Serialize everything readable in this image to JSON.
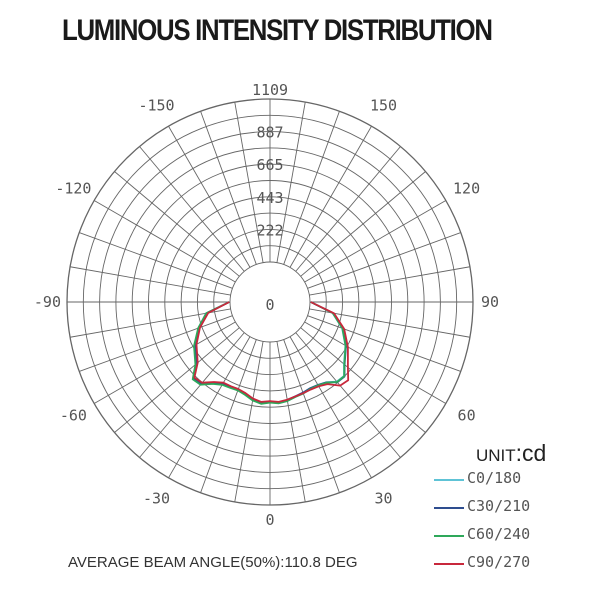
{
  "chart_data": {
    "type": "polar-line",
    "title": "LUMINOUS INTENSITY DISTRIBUTION",
    "radial_ticks": [
      "222",
      "443",
      "665",
      "887",
      "1109"
    ],
    "radial_max": 1109,
    "angle_ticks": [
      {
        "angle": 0,
        "label": "0"
      },
      {
        "angle": 30,
        "label": "30"
      },
      {
        "angle": 60,
        "label": "60"
      },
      {
        "angle": 90,
        "label": "90"
      },
      {
        "angle": 120,
        "label": "120"
      },
      {
        "angle": 150,
        "label": "150"
      },
      {
        "angle": -30,
        "label": "-30"
      },
      {
        "angle": -60,
        "label": "-60"
      },
      {
        "angle": -90,
        "label": "-90"
      },
      {
        "angle": -120,
        "label": "-120"
      },
      {
        "angle": -150,
        "label": "-150"
      },
      {
        "angle": 180,
        "label": "1109"
      }
    ],
    "unit_prefix": "UNIT",
    "unit": ":cd",
    "footer": "AVERAGE BEAM ANGLE(50%):110.8 DEG",
    "series": [
      {
        "name": "C0/180",
        "color": "#5ec3d6",
        "points": [
          [
            -90,
            5
          ],
          [
            -80,
            170
          ],
          [
            -70,
            245
          ],
          [
            -60,
            320
          ],
          [
            -50,
            385
          ],
          [
            -45,
            470
          ],
          [
            -40,
            460
          ],
          [
            -35,
            405
          ],
          [
            -30,
            375
          ],
          [
            -25,
            370
          ],
          [
            -20,
            365
          ],
          [
            -15,
            380
          ],
          [
            -10,
            405
          ],
          [
            -5,
            420
          ],
          [
            0,
            410
          ],
          [
            5,
            418
          ],
          [
            10,
            410
          ],
          [
            15,
            395
          ],
          [
            20,
            388
          ],
          [
            25,
            378
          ],
          [
            30,
            380
          ],
          [
            35,
            395
          ],
          [
            40,
            435
          ],
          [
            45,
            440
          ],
          [
            50,
            385
          ],
          [
            60,
            320
          ],
          [
            70,
            250
          ],
          [
            80,
            160
          ],
          [
            90,
            5
          ]
        ]
      },
      {
        "name": "C30/210",
        "color": "#2e4d8f",
        "points": [
          [
            -90,
            5
          ],
          [
            -80,
            165
          ],
          [
            -70,
            242
          ],
          [
            -60,
            315
          ],
          [
            -50,
            380
          ],
          [
            -45,
            465
          ],
          [
            -40,
            455
          ],
          [
            -35,
            400
          ],
          [
            -30,
            372
          ],
          [
            -25,
            366
          ],
          [
            -20,
            362
          ],
          [
            -15,
            376
          ],
          [
            -10,
            400
          ],
          [
            -5,
            415
          ],
          [
            0,
            405
          ],
          [
            5,
            413
          ],
          [
            10,
            405
          ],
          [
            15,
            392
          ],
          [
            20,
            384
          ],
          [
            25,
            375
          ],
          [
            30,
            380
          ],
          [
            35,
            396
          ],
          [
            40,
            440
          ],
          [
            45,
            445
          ],
          [
            50,
            390
          ],
          [
            60,
            325
          ],
          [
            70,
            255
          ],
          [
            80,
            165
          ],
          [
            90,
            5
          ]
        ]
      },
      {
        "name": "C60/240",
        "color": "#2ea85a",
        "points": [
          [
            -90,
            5
          ],
          [
            -80,
            168
          ],
          [
            -70,
            248
          ],
          [
            -60,
            325
          ],
          [
            -50,
            390
          ],
          [
            -45,
            472
          ],
          [
            -40,
            462
          ],
          [
            -35,
            408
          ],
          [
            -30,
            378
          ],
          [
            -25,
            372
          ],
          [
            -20,
            368
          ],
          [
            -15,
            382
          ],
          [
            -10,
            408
          ],
          [
            -5,
            423
          ],
          [
            0,
            412
          ],
          [
            5,
            420
          ],
          [
            10,
            412
          ],
          [
            15,
            396
          ],
          [
            20,
            390
          ],
          [
            25,
            380
          ],
          [
            30,
            382
          ],
          [
            35,
            398
          ],
          [
            40,
            438
          ],
          [
            45,
            442
          ],
          [
            50,
            388
          ],
          [
            60,
            322
          ],
          [
            70,
            252
          ],
          [
            80,
            162
          ],
          [
            90,
            5
          ]
        ]
      },
      {
        "name": "C90/270",
        "color": "#c8283c",
        "points": [
          [
            -90,
            5
          ],
          [
            -80,
            155
          ],
          [
            -70,
            235
          ],
          [
            -60,
            305
          ],
          [
            -50,
            370
          ],
          [
            -45,
            455
          ],
          [
            -40,
            445
          ],
          [
            -35,
            392
          ],
          [
            -30,
            362
          ],
          [
            -25,
            360
          ],
          [
            -20,
            358
          ],
          [
            -15,
            370
          ],
          [
            -10,
            395
          ],
          [
            -5,
            410
          ],
          [
            0,
            402
          ],
          [
            5,
            410
          ],
          [
            10,
            403
          ],
          [
            15,
            393
          ],
          [
            20,
            388
          ],
          [
            25,
            385
          ],
          [
            30,
            390
          ],
          [
            35,
            410
          ],
          [
            40,
            470
          ],
          [
            45,
            480
          ],
          [
            50,
            420
          ],
          [
            60,
            340
          ],
          [
            70,
            265
          ],
          [
            80,
            170
          ],
          [
            90,
            5
          ]
        ]
      }
    ]
  }
}
